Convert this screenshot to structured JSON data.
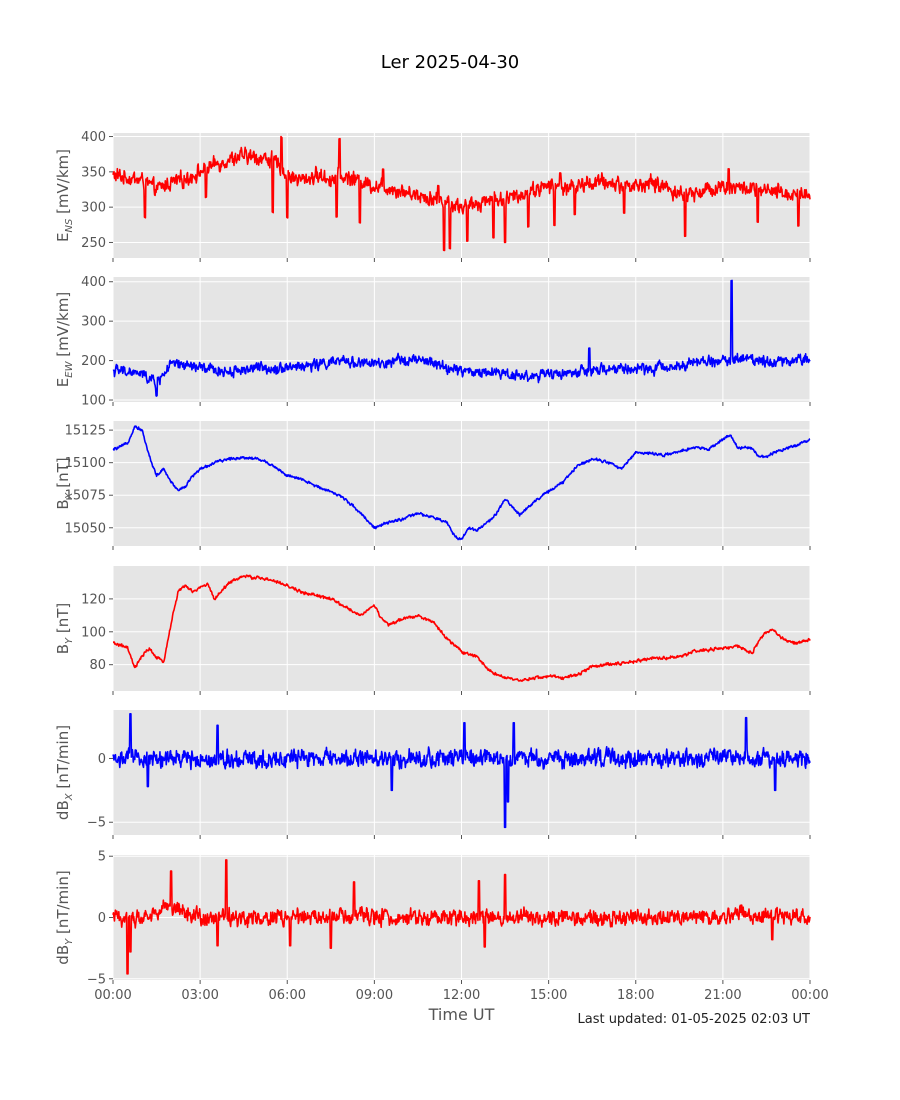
{
  "title": "Ler 2025-04-30",
  "xlabel": "Time UT",
  "footer": "Last updated: 01-05-2025 02:03 UT",
  "colors": {
    "red": "#ff0000",
    "blue": "#0000ff",
    "panel_bg": "#e5e5e5",
    "grid": "#ffffff"
  },
  "chart_data": [
    {
      "type": "line",
      "id": "ens",
      "ylabel_main": "E",
      "ylabel_sub": "NS",
      "ylabel_unit": " [mV/km]",
      "color": "#ff0000",
      "ylim": [
        228,
        405
      ],
      "yticks": [
        250,
        300,
        350,
        400
      ],
      "ytick_labels": [
        "250",
        "300",
        "350",
        "400"
      ],
      "x_hours": [
        0,
        0.5,
        1,
        1.5,
        2,
        2.5,
        3,
        3.5,
        4,
        4.5,
        5,
        5.5,
        6,
        6.5,
        7,
        7.5,
        8,
        8.5,
        9,
        9.5,
        10,
        10.5,
        11,
        11.5,
        12,
        12.5,
        13,
        13.5,
        14,
        14.5,
        15,
        15.5,
        16,
        16.5,
        17,
        17.5,
        18,
        18.5,
        19,
        19.5,
        20,
        20.5,
        21,
        21.5,
        22,
        22.5,
        23,
        23.5,
        24
      ],
      "values": [
        345,
        342,
        338,
        325,
        335,
        340,
        350,
        360,
        368,
        372,
        370,
        368,
        345,
        338,
        345,
        340,
        343,
        338,
        330,
        328,
        322,
        318,
        312,
        308,
        300,
        305,
        312,
        310,
        318,
        325,
        330,
        328,
        330,
        335,
        335,
        332,
        330,
        334,
        330,
        318,
        320,
        325,
        330,
        328,
        325,
        322,
        320,
        318,
        320
      ],
      "noise": 14,
      "dips": [
        [
          1.1,
          -50
        ],
        [
          3.2,
          -40
        ],
        [
          5.5,
          -75
        ],
        [
          6,
          -60
        ],
        [
          7.7,
          -55
        ],
        [
          8.5,
          -60
        ],
        [
          11.4,
          -70
        ],
        [
          11.6,
          -65
        ],
        [
          12.2,
          -50
        ],
        [
          13.1,
          -55
        ],
        [
          13.5,
          -60
        ],
        [
          14.3,
          -50
        ],
        [
          15.2,
          -55
        ],
        [
          15.9,
          -40
        ],
        [
          17.6,
          -40
        ],
        [
          19.7,
          -60
        ],
        [
          22.2,
          -45
        ],
        [
          23.6,
          -45
        ]
      ],
      "spikes": [
        [
          5.8,
          45
        ],
        [
          7.8,
          55
        ],
        [
          9.3,
          25
        ],
        [
          11.2,
          20
        ],
        [
          15.4,
          20
        ],
        [
          21.2,
          25
        ]
      ]
    },
    {
      "type": "line",
      "id": "eew",
      "ylabel_main": "E",
      "ylabel_sub": "EW",
      "ylabel_unit": " [mV/km]",
      "color": "#0000ff",
      "ylim": [
        95,
        412
      ],
      "yticks": [
        100,
        200,
        300,
        400
      ],
      "ytick_labels": [
        "100",
        "200",
        "300",
        "400"
      ],
      "x_hours": [
        0,
        0.5,
        1,
        1.5,
        2,
        2.5,
        3,
        3.5,
        4,
        4.5,
        5,
        5.5,
        6,
        6.5,
        7,
        7.5,
        8,
        8.5,
        9,
        9.5,
        10,
        10.5,
        11,
        11.5,
        12,
        12.5,
        13,
        13.5,
        14,
        14.5,
        15,
        15.5,
        16,
        16.5,
        17,
        17.5,
        18,
        18.5,
        19,
        19.5,
        20,
        20.5,
        21,
        21.5,
        22,
        22.5,
        23,
        23.5,
        24
      ],
      "values": [
        175,
        172,
        165,
        145,
        190,
        188,
        182,
        175,
        172,
        178,
        182,
        180,
        185,
        185,
        190,
        195,
        198,
        195,
        192,
        190,
        205,
        200,
        195,
        180,
        175,
        170,
        172,
        168,
        162,
        160,
        165,
        168,
        170,
        172,
        178,
        180,
        178,
        180,
        182,
        190,
        195,
        198,
        200,
        205,
        205,
        200,
        198,
        202,
        205
      ],
      "noise": 18,
      "dips": [
        [
          1.5,
          -35
        ]
      ],
      "spikes": [
        [
          16.4,
          60
        ],
        [
          21.3,
          200
        ]
      ]
    },
    {
      "type": "line",
      "id": "bx",
      "ylabel_main": "B",
      "ylabel_sub": "X",
      "ylabel_unit": " [nT]",
      "color": "#0000ff",
      "ylim": [
        15036,
        15132
      ],
      "yticks": [
        15050,
        15075,
        15100,
        15125
      ],
      "ytick_labels": [
        "15050",
        "15075",
        "15100",
        "15125"
      ],
      "x_hours": [
        0,
        0.25,
        0.5,
        0.75,
        1,
        1.25,
        1.5,
        1.75,
        2,
        2.25,
        2.5,
        2.75,
        3,
        3.5,
        4,
        4.5,
        5,
        5.5,
        6,
        6.5,
        7,
        7.5,
        8,
        8.5,
        9,
        9.5,
        10,
        10.5,
        11,
        11.5,
        11.75,
        12,
        12.25,
        12.5,
        13,
        13.25,
        13.5,
        14,
        14.5,
        15,
        15.5,
        16,
        16.5,
        17,
        17.5,
        18,
        18.5,
        19,
        19.5,
        20,
        20.5,
        21,
        21.25,
        21.5,
        22,
        22.25,
        22.5,
        23,
        23.5,
        24
      ],
      "values": [
        15110,
        15112,
        15115,
        15128,
        15125,
        15105,
        15090,
        15095,
        15085,
        15079,
        15082,
        15090,
        15095,
        15100,
        15103,
        15104,
        15103,
        15098,
        15090,
        15087,
        15082,
        15078,
        15072,
        15062,
        15050,
        15054,
        15057,
        15061,
        15058,
        15054,
        15044,
        15041,
        15050,
        15048,
        15056,
        15062,
        15072,
        15060,
        15070,
        15078,
        15085,
        15098,
        15103,
        15101,
        15095,
        15108,
        15107,
        15106,
        15108,
        15112,
        15110,
        15118,
        15121,
        15112,
        15111,
        15104,
        15105,
        15110,
        15113,
        15118
      ],
      "noise": 1.4,
      "dips": [],
      "spikes": []
    },
    {
      "type": "line",
      "id": "by",
      "ylabel_main": "B",
      "ylabel_sub": "Y",
      "ylabel_unit": " [nT]",
      "color": "#ff0000",
      "ylim": [
        64,
        140
      ],
      "yticks": [
        80,
        100,
        120
      ],
      "ytick_labels": [
        "80",
        "100",
        "120"
      ],
      "x_hours": [
        0,
        0.25,
        0.5,
        0.75,
        1,
        1.25,
        1.5,
        1.75,
        2,
        2.25,
        2.5,
        2.75,
        3,
        3.25,
        3.5,
        3.75,
        4,
        4.25,
        4.5,
        4.75,
        5,
        5.5,
        6,
        6.5,
        7,
        7.5,
        8,
        8.5,
        9,
        9.25,
        9.5,
        10,
        10.5,
        11,
        11.5,
        12,
        12.5,
        13,
        13.5,
        14,
        14.5,
        15,
        15.5,
        16,
        16.5,
        17,
        17.5,
        18,
        18.5,
        19,
        19.5,
        20,
        20.5,
        21,
        21.5,
        22,
        22.25,
        22.5,
        22.75,
        23,
        23.5,
        24
      ],
      "values": [
        93,
        92,
        90,
        78,
        85,
        90,
        84,
        82,
        105,
        125,
        128,
        124,
        127,
        129,
        120,
        125,
        130,
        132,
        134,
        133,
        133,
        131,
        128,
        124,
        122,
        120,
        115,
        110,
        116,
        108,
        104,
        108,
        110,
        106,
        96,
        88,
        85,
        76,
        72,
        70,
        72,
        73,
        72,
        74,
        79,
        80,
        81,
        82,
        84,
        84,
        85,
        88,
        89,
        90,
        91,
        87,
        95,
        100,
        101,
        96,
        93,
        95
      ],
      "noise": 1.2,
      "dips": [],
      "spikes": []
    },
    {
      "type": "line",
      "id": "dbx",
      "ylabel_main": "dB",
      "ylabel_sub": "X",
      "ylabel_unit": " [nT/min]",
      "color": "#0000ff",
      "ylim": [
        -6,
        3.8
      ],
      "yticks": [
        -5,
        0
      ],
      "ytick_labels": [
        "−5",
        "0"
      ],
      "x_hours": [
        0,
        24
      ],
      "values": [
        0,
        0
      ],
      "noise": 0.9,
      "dips": [
        [
          1.2,
          -2.2
        ],
        [
          9.6,
          -2.5
        ],
        [
          13.5,
          -5.4
        ],
        [
          13.6,
          -3.4
        ],
        [
          22.8,
          -2.5
        ]
      ],
      "spikes": [
        [
          0.6,
          3.5
        ],
        [
          3.6,
          2.6
        ],
        [
          12.1,
          2.8
        ],
        [
          13.8,
          2.8
        ],
        [
          21.8,
          3.2
        ]
      ]
    },
    {
      "type": "line",
      "id": "dby",
      "ylabel_main": "dB",
      "ylabel_sub": "Y",
      "ylabel_unit": " [nT/min]",
      "color": "#ff0000",
      "ylim": [
        -5.1,
        5.1
      ],
      "yticks": [
        -5,
        0,
        5
      ],
      "ytick_labels": [
        "−5",
        "0",
        "5"
      ],
      "x_hours": [
        0,
        1,
        2,
        2.5,
        3,
        4,
        5,
        6,
        8,
        10,
        12,
        14,
        16,
        18,
        20,
        22,
        24
      ],
      "values": [
        0,
        0,
        1,
        0.5,
        0,
        0,
        0,
        0,
        0,
        0,
        0,
        0,
        0,
        0,
        0,
        0.3,
        0
      ],
      "noise": 0.85,
      "dips": [
        [
          0.5,
          -4.6
        ],
        [
          0.6,
          -2.8
        ],
        [
          3.6,
          -2.3
        ],
        [
          6.1,
          -2.3
        ],
        [
          7.5,
          -2.5
        ],
        [
          12.8,
          -2.4
        ],
        [
          22.7,
          -2
        ]
      ],
      "spikes": [
        [
          2,
          2.8
        ],
        [
          3.9,
          4.7
        ],
        [
          8.3,
          2.9
        ],
        [
          12.6,
          3
        ],
        [
          13.5,
          3.5
        ]
      ]
    }
  ],
  "x_axis": {
    "range_hours": [
      0,
      24
    ],
    "ticks_hours": [
      0,
      3,
      6,
      9,
      12,
      15,
      18,
      21,
      24
    ],
    "tick_labels": [
      "00:00",
      "03:00",
      "06:00",
      "09:00",
      "12:00",
      "15:00",
      "18:00",
      "21:00",
      "00:00"
    ]
  }
}
